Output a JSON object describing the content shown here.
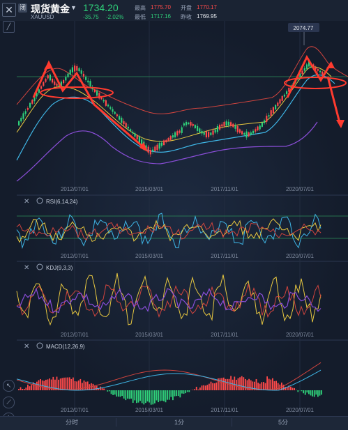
{
  "header": {
    "close_icon": "close-icon",
    "tag": "闭",
    "title": "现货黄金",
    "symbol": "XAUUSD",
    "price": "1734.20",
    "change": "-35.75",
    "change_pct": "-2.02%",
    "high_label": "最高",
    "high_value": "1775.70",
    "open_label": "开盘",
    "open_value": "1770.17",
    "low_label": "最低",
    "low_value": "1717.16",
    "prev_close_label": "昨收",
    "prev_close_value": "1769.95"
  },
  "main": {
    "peak_label": "2074.77",
    "x_ticks": [
      "2012/07/01",
      "2015/03/01",
      "2017/11/01",
      "2020/07/01"
    ]
  },
  "indicators": {
    "rsi_label": "RSI(6,14,24)",
    "kdj_label": "KDJ(9,3,3)",
    "macd_label": "MACD(12,26,9)"
  },
  "bottom": {
    "tabs": [
      "分时",
      "1分",
      "5分"
    ]
  },
  "colors": {
    "up": "#ff4a4a",
    "down": "#2fd07a",
    "ma_red": "#d0443e",
    "ma_yellow": "#e8c840",
    "ma_cyan": "#3fb6e6",
    "ma_purple": "#8a4ed8",
    "annotation": "#ff3b2f"
  }
}
